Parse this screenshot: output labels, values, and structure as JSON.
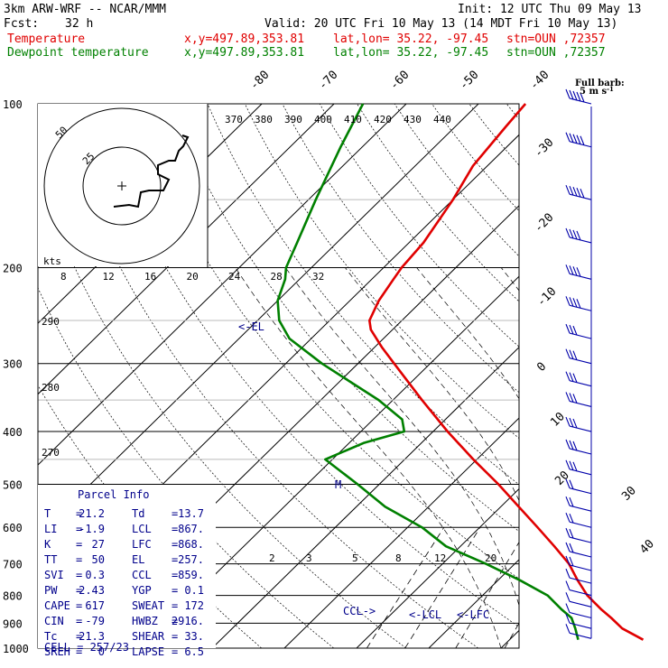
{
  "header": {
    "model": "3km ARW-WRF -- NCAR/MMM",
    "init": "Init: 12 UTC Thu 09 May 13",
    "fcst_label": "Fcst:",
    "fcst_value": "32 h",
    "valid": "Valid: 20 UTC Fri 10 May 13 (14 MDT Fri 10 May 13)",
    "temp_label": "Temperature",
    "dew_label": "Dewpoint temperature",
    "xy": "x,y=497.89,353.81",
    "latlon": "lat,lon= 35.22, -97.45",
    "stn": "stn=OUN ,72357"
  },
  "barb_legend": {
    "line1": "Full barb:",
    "line2": "5 m s"
  },
  "hodograph": {
    "units": "kts"
  },
  "parcel_info": {
    "title": "Parcel Info",
    "rows": [
      {
        "a_lbl": "T",
        "a_val": "21.2",
        "b_lbl": "Td",
        "b_val": "13.7"
      },
      {
        "a_lbl": "LI",
        "a_val": "-1.9",
        "b_lbl": "LCL",
        "b_val": "867."
      },
      {
        "a_lbl": "K",
        "a_val": "27",
        "b_lbl": "LFC",
        "b_val": "868."
      },
      {
        "a_lbl": "TT",
        "a_val": "50",
        "b_lbl": "EL",
        "b_val": "257."
      },
      {
        "a_lbl": "SVI",
        "a_val": "0.3",
        "b_lbl": "CCL",
        "b_val": "859."
      },
      {
        "a_lbl": "PW",
        "a_val": "2.43",
        "b_lbl": "YGP",
        "b_val": "0.1"
      },
      {
        "a_lbl": "CAPE",
        "a_val": "617",
        "b_lbl": "SWEAT",
        "b_val": "172"
      },
      {
        "a_lbl": "CIN",
        "a_val": "-79",
        "b_lbl": "HWBZ",
        "b_val": "2916."
      },
      {
        "a_lbl": "Tc",
        "a_val": "21.3",
        "b_lbl": "SHEAR",
        "b_val": "33."
      },
      {
        "a_lbl": "SREH",
        "a_val": "0",
        "b_lbl": "LAPSE",
        "b_val": "6.5"
      }
    ],
    "cell_label": "CELL",
    "cell_value": "257/23"
  },
  "level_markers": {
    "el": "EL",
    "ccl": "CCL",
    "lcl": "LCL",
    "lfc": "LFC",
    "m": "M"
  },
  "colors": {
    "temperature": "#e00000",
    "dewpoint": "#008000",
    "annotation": "#00008b",
    "barb": "#0000aa"
  },
  "chart_data": {
    "type": "line",
    "title": "",
    "xlabel": "",
    "ylabel": "",
    "y_scale": "log pressure",
    "ylim": [
      1000,
      100
    ],
    "pressure_ticks": [
      100,
      200,
      300,
      400,
      500,
      600,
      700,
      800,
      900,
      1000
    ],
    "isotherm_labels": [
      "-80",
      "-70",
      "-60",
      "-50",
      "-40",
      "-30",
      "-20",
      "-10",
      "0",
      "10",
      "20",
      "30",
      "40"
    ],
    "theta_labels_top": [
      "370",
      "380",
      "390",
      "400",
      "410",
      "420",
      "430",
      "440"
    ],
    "theta_labels_left": [
      "290",
      "280",
      "270"
    ],
    "mixing_ratio_labels": [
      "2",
      "3",
      "5",
      "8",
      "12",
      "20"
    ],
    "hodo_speed_labels": [
      "8",
      "12",
      "16",
      "20",
      "24",
      "28",
      "32"
    ],
    "hodo_ring_labels": [
      "50",
      "25"
    ],
    "series": [
      {
        "name": "Temperature",
        "pressure": [
          965,
          920,
          880,
          850,
          800,
          750,
          700,
          650,
          600,
          550,
          500,
          450,
          400,
          350,
          300,
          280,
          260,
          250,
          230,
          210,
          200,
          180,
          150,
          130,
          110,
          100
        ],
        "values": [
          28.5,
          24,
          21,
          18.5,
          14.5,
          11,
          7.5,
          3,
          -2,
          -7.5,
          -13.5,
          -20.5,
          -28,
          -36,
          -45,
          -49,
          -53,
          -54.5,
          -56,
          -57,
          -57.5,
          -58,
          -60,
          -62,
          -63,
          -63.5
        ]
      },
      {
        "name": "Dewpoint temperature",
        "pressure": [
          965,
          920,
          880,
          850,
          800,
          750,
          700,
          650,
          600,
          550,
          500,
          450,
          420,
          400,
          380,
          350,
          300,
          270,
          250,
          230,
          210,
          200,
          180,
          150,
          120,
          100
        ],
        "values": [
          19.5,
          17.5,
          15.5,
          13,
          9,
          3,
          -4,
          -12,
          -18,
          -26,
          -33,
          -41,
          -38,
          -34,
          -36,
          -42,
          -55,
          -63,
          -67,
          -70,
          -72,
          -73.5,
          -75.5,
          -79,
          -83,
          -86
        ]
      }
    ],
    "wind_barbs": [
      {
        "pressure": 100,
        "speed_ms": 25
      },
      {
        "pressure": 120,
        "speed_ms": 25
      },
      {
        "pressure": 150,
        "speed_ms": 25
      },
      {
        "pressure": 180,
        "speed_ms": 20
      },
      {
        "pressure": 210,
        "speed_ms": 20
      },
      {
        "pressure": 240,
        "speed_ms": 20
      },
      {
        "pressure": 270,
        "speed_ms": 15
      },
      {
        "pressure": 300,
        "speed_ms": 15
      },
      {
        "pressure": 330,
        "speed_ms": 15
      },
      {
        "pressure": 360,
        "speed_ms": 15
      },
      {
        "pressure": 400,
        "speed_ms": 15
      },
      {
        "pressure": 440,
        "speed_ms": 15
      },
      {
        "pressure": 480,
        "speed_ms": 15
      },
      {
        "pressure": 520,
        "speed_ms": 10
      },
      {
        "pressure": 560,
        "speed_ms": 10
      },
      {
        "pressure": 600,
        "speed_ms": 10
      },
      {
        "pressure": 640,
        "speed_ms": 10
      },
      {
        "pressure": 680,
        "speed_ms": 10
      },
      {
        "pressure": 720,
        "speed_ms": 10
      },
      {
        "pressure": 760,
        "speed_ms": 5
      },
      {
        "pressure": 800,
        "speed_ms": 5
      },
      {
        "pressure": 840,
        "speed_ms": 5
      },
      {
        "pressure": 880,
        "speed_ms": 5
      },
      {
        "pressure": 920,
        "speed_ms": 5
      },
      {
        "pressure": 960,
        "speed_ms": 5
      }
    ]
  }
}
